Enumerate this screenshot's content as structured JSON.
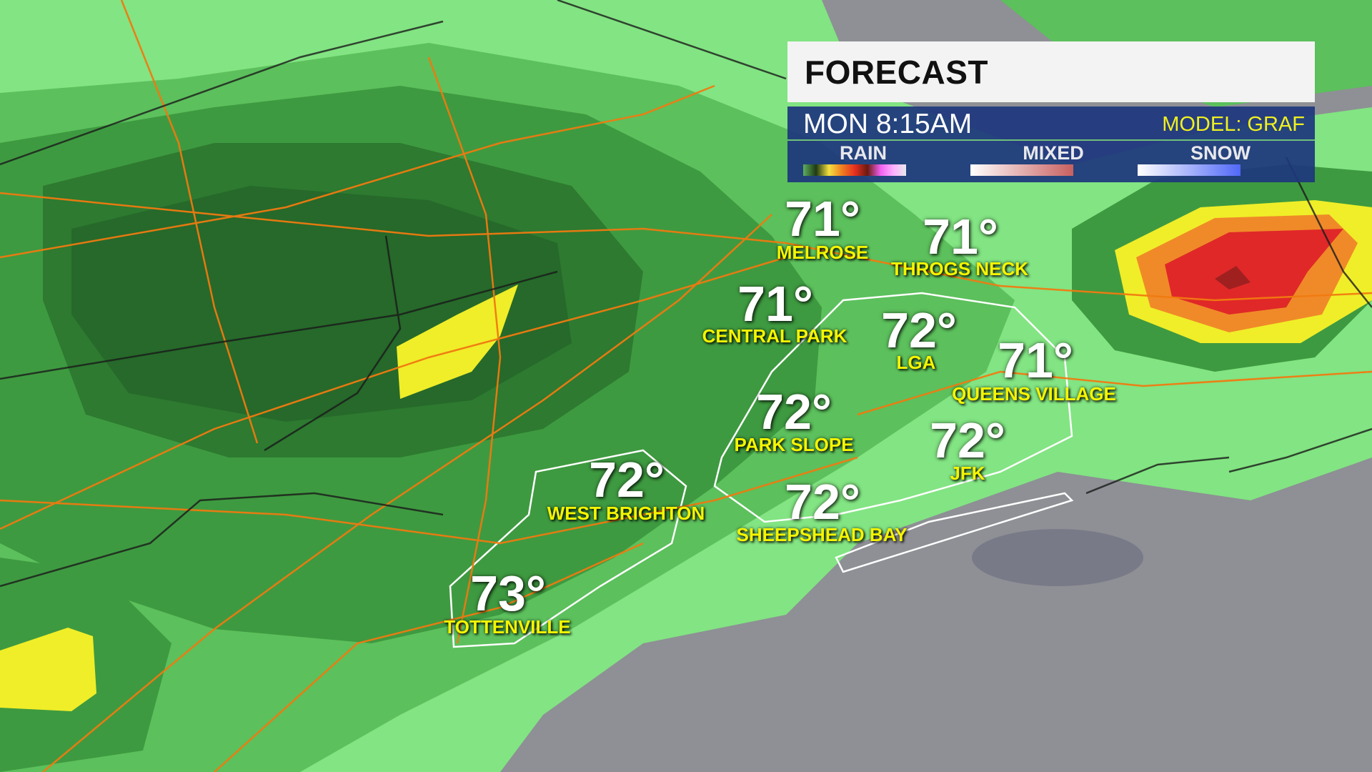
{
  "header": {
    "title": "FORECAST",
    "time": "MON 8:15AM",
    "model": "MODEL: GRAF"
  },
  "legend": [
    {
      "label": "RAIN",
      "gradient": [
        "#5fae5f",
        "#1e3a14",
        "#f5e040",
        "#f08020",
        "#e83020",
        "#6a1a10",
        "#f060f0",
        "#ffb0ff",
        "#e8e8ec"
      ]
    },
    {
      "label": "MIXED",
      "gradient": [
        "#ffffff",
        "#c86060"
      ]
    },
    {
      "label": "SNOW",
      "gradient": [
        "#ffffff",
        "#5068f8"
      ]
    }
  ],
  "locations": [
    {
      "temp": "71°",
      "name": "MELROSE"
    },
    {
      "temp": "71°",
      "name": "THROGS NECK"
    },
    {
      "temp": "71°",
      "name": "CENTRAL PARK"
    },
    {
      "temp": "72°",
      "name": "LGA"
    },
    {
      "temp": "71°",
      "name": "QUEENS VILLAGE"
    },
    {
      "temp": "72°",
      "name": "PARK SLOPE"
    },
    {
      "temp": "72°",
      "name": "JFK"
    },
    {
      "temp": "72°",
      "name": "SHEEPSHEAD BAY"
    },
    {
      "temp": "72°",
      "name": "WEST BRIGHTON"
    },
    {
      "temp": "73°",
      "name": "TOTTENVILLE"
    }
  ],
  "colors": {
    "rain_light": "#82e482",
    "rain_mid": "#5cc05c",
    "rain_dark": "#3e9a40",
    "rain_darker": "#2d7a30",
    "rain_heavy_yellow": "#f0ee28",
    "rain_red": "#e02828",
    "water": "#8e9095",
    "panel_blue": "#1e377d",
    "label_yellow": "#f5f500"
  }
}
